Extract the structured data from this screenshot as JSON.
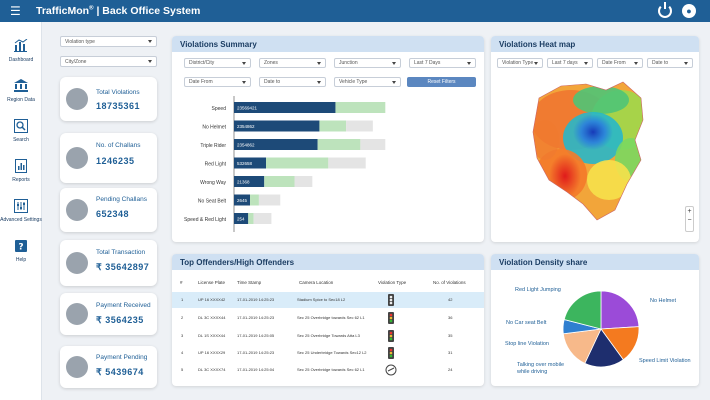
{
  "app": {
    "brand": "TrafficMon",
    "brand_mark": "®",
    "title": "Back Office System"
  },
  "icons": {
    "menu": "hamburger-icon",
    "power": "power-icon",
    "user": "user-icon"
  },
  "sidebar": {
    "items": [
      {
        "label": "Dashboard",
        "icon": "chart-icon"
      },
      {
        "label": "Region Data",
        "icon": "bank-icon"
      },
      {
        "label": "Search",
        "icon": "search-icon"
      },
      {
        "label": "Reports",
        "icon": "report-icon"
      },
      {
        "label": "Advanced Settings",
        "icon": "settings-icon"
      },
      {
        "label": "Help",
        "icon": "help-icon"
      }
    ]
  },
  "filters": {
    "violation_type": "Violation type",
    "city_zone": "City/Zone"
  },
  "kpis": [
    {
      "title": "Total Violations",
      "value": "18735361",
      "icon": "police-cap-icon"
    },
    {
      "title": "No. of Challans",
      "value": "1246235",
      "icon": "challan-icon"
    },
    {
      "title": "Pending Challans",
      "value": "652348",
      "icon": "challan-pending-icon"
    },
    {
      "title": "Total Transaction",
      "value": "₹ 35642897",
      "icon": "card-icon"
    },
    {
      "title": "Payment Received",
      "value": "₹ 3564235",
      "icon": "payment-received-icon"
    },
    {
      "title": "Payment Pending",
      "value": "₹ 5439674",
      "icon": "payment-pending-icon"
    }
  ],
  "summary": {
    "title": "Violations Summary",
    "filters": [
      "District/City",
      "Zones",
      "Junction",
      "Last 7 Days",
      "Date From",
      "Date to",
      "Vehicle Type"
    ],
    "reset": "Reset Filters"
  },
  "heatmap": {
    "title": "Violations Heat map",
    "filters": [
      "Violation Type",
      "Last 7 days",
      "Date From",
      "Date to"
    ],
    "zoom_in": "+",
    "zoom_out": "−"
  },
  "offenders": {
    "title": "Top Offenders/High Offenders",
    "columns": [
      "#",
      "License Plate",
      "Time Stamp",
      "Camera Location",
      "Violation Type",
      "No. of Violations"
    ],
    "rows": [
      {
        "n": "1",
        "plate": "UP 16 XXXX42",
        "time": "17-01-2019  14:25:23",
        "loc": "Stadium Spice to Sec18 L2",
        "count": "42",
        "vtype": "signal-icon"
      },
      {
        "n": "2",
        "plate": "DL 3C XXXX44",
        "time": "17-01-2019  14:25:23",
        "loc": "Sec 25 Overbridge towards Sec 62 L1",
        "count": "36",
        "vtype": "signal-icon"
      },
      {
        "n": "3",
        "plate": "DL 1S XXXX44",
        "time": "17-01-2019  14:25:05",
        "loc": "Sec 25 Overbridge Towards Atta L3",
        "count": "35",
        "vtype": "signal-icon"
      },
      {
        "n": "4",
        "plate": "UP 16 XXXX29",
        "time": "17-01-2019  14:25:23",
        "loc": "Sec 25 Underbridge Towards Sec12 L2",
        "count": "31",
        "vtype": "signal-icon"
      },
      {
        "n": "5",
        "plate": "DL 3C XXXX74",
        "time": "17-01-2019  14:25:04",
        "loc": "Sec 25 Overbridge towards Sec 62 L1",
        "count": "24",
        "vtype": "speed-camera-icon"
      }
    ]
  },
  "density": {
    "title": "Violation Density  share"
  },
  "chart_data": [
    {
      "type": "bar",
      "title": "Violations Summary",
      "categories": [
        "Speed",
        "No Helmet",
        "Triple Rider",
        "Red Light",
        "Wrong Way",
        "No Seat Belt",
        "Speed & Red Light"
      ],
      "labels": [
        "23569421",
        "2354862",
        "2354862",
        "532658",
        "21368",
        "2645",
        "254"
      ],
      "series": [
        {
          "name": "dark",
          "color": "#1d4a78",
          "values": [
            57,
            48,
            47,
            18,
            17,
            9,
            8
          ]
        },
        {
          "name": "light",
          "color": "#bde3bc",
          "values": [
            28,
            15,
            24,
            35,
            17,
            5,
            3
          ]
        },
        {
          "name": "grey",
          "color": "#e4e4e4",
          "values": [
            0,
            15,
            14,
            21,
            10,
            12,
            10
          ]
        }
      ]
    },
    {
      "type": "pie",
      "title": "Violation Density  share",
      "categories": [
        "No Helmet",
        "Speed Limit Violation",
        "Talking over mobile while driving",
        "Stop line Violation",
        "No Car seat Belt",
        "Red Light Jumping"
      ],
      "values": [
        24,
        16,
        17,
        16,
        6,
        21
      ],
      "colors": [
        "#9b4bd8",
        "#f47a1f",
        "#1e2e6e",
        "#f7b98a",
        "#2f7fd0",
        "#3cb55e"
      ]
    }
  ]
}
